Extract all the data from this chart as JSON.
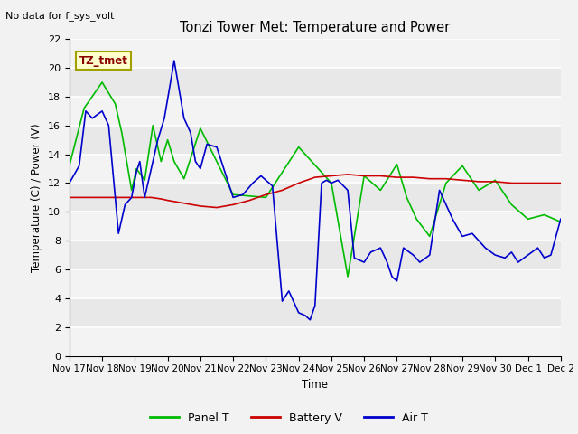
{
  "title": "Tonzi Tower Met: Temperature and Power",
  "no_data_text": "No data for f_sys_volt",
  "legend_box_text": "TZ_tmet",
  "ylabel": "Temperature (C) / Power (V)",
  "xlabel": "Time",
  "ylim": [
    0,
    22
  ],
  "yticks": [
    0,
    2,
    4,
    6,
    8,
    10,
    12,
    14,
    16,
    18,
    20,
    22
  ],
  "xtick_labels": [
    "Nov 17",
    "Nov 18",
    "Nov 19",
    "Nov 20",
    "Nov 21",
    "Nov 22",
    "Nov 23",
    "Nov 24",
    "Nov 25",
    "Nov 26",
    "Nov 27",
    "Nov 28",
    "Nov 29",
    "Nov 30",
    "Dec 1",
    "Dec 2"
  ],
  "bg_color": "#e8e8e8",
  "panel_t_color": "#00bb00",
  "battery_v_color": "#cc0000",
  "air_t_color": "#0000cc",
  "panel_t_x": [
    0.0,
    0.45,
    1.0,
    1.4,
    1.6,
    1.9,
    2.05,
    2.3,
    2.55,
    2.8,
    3.0,
    3.2,
    3.5,
    4.0,
    5.0,
    6.0,
    7.0,
    8.0,
    8.5,
    9.0,
    9.5,
    10.0,
    10.3,
    10.6,
    11.0,
    11.5,
    12.0,
    12.5,
    13.0,
    13.5,
    14.0,
    14.5,
    15.0
  ],
  "panel_t": [
    13.2,
    17.2,
    19.0,
    17.5,
    15.5,
    11.5,
    13.0,
    12.2,
    16.0,
    13.5,
    15.0,
    13.5,
    12.3,
    15.8,
    11.2,
    11.0,
    14.5,
    12.0,
    5.5,
    12.5,
    11.5,
    13.3,
    11.0,
    9.5,
    8.3,
    12.0,
    13.2,
    11.5,
    12.2,
    10.5,
    9.5,
    9.8,
    9.3
  ],
  "battery_v_x": [
    0.0,
    0.5,
    1.0,
    1.5,
    2.0,
    2.5,
    2.8,
    3.0,
    3.5,
    4.0,
    4.5,
    5.0,
    5.5,
    6.0,
    6.5,
    7.0,
    7.5,
    8.0,
    8.5,
    9.0,
    9.5,
    10.0,
    10.5,
    11.0,
    11.5,
    12.0,
    12.5,
    13.0,
    13.5,
    14.0,
    14.5,
    15.0
  ],
  "battery_v": [
    11.0,
    11.0,
    11.0,
    11.0,
    11.0,
    11.0,
    10.9,
    10.8,
    10.6,
    10.4,
    10.3,
    10.5,
    10.8,
    11.2,
    11.5,
    12.0,
    12.4,
    12.5,
    12.6,
    12.5,
    12.5,
    12.4,
    12.4,
    12.3,
    12.3,
    12.2,
    12.1,
    12.1,
    12.0,
    12.0,
    12.0,
    12.0
  ],
  "air_t_x": [
    0.0,
    0.3,
    0.5,
    0.7,
    1.0,
    1.2,
    1.5,
    1.7,
    1.9,
    2.05,
    2.15,
    2.3,
    2.5,
    2.7,
    2.9,
    3.05,
    3.2,
    3.35,
    3.5,
    3.7,
    3.85,
    4.0,
    4.2,
    4.5,
    5.0,
    5.3,
    5.6,
    5.85,
    6.0,
    6.2,
    6.5,
    6.7,
    7.0,
    7.2,
    7.35,
    7.5,
    7.7,
    7.85,
    8.0,
    8.2,
    8.5,
    8.7,
    9.0,
    9.2,
    9.5,
    9.7,
    9.85,
    10.0,
    10.2,
    10.5,
    10.7,
    11.0,
    11.3,
    11.5,
    11.7,
    12.0,
    12.3,
    12.5,
    12.7,
    13.0,
    13.3,
    13.5,
    13.7,
    14.0,
    14.3,
    14.5,
    14.7,
    15.0
  ],
  "air_t": [
    12.0,
    13.2,
    17.0,
    16.5,
    17.0,
    16.0,
    8.5,
    10.5,
    11.0,
    12.8,
    13.5,
    11.0,
    13.0,
    15.0,
    16.5,
    18.5,
    20.5,
    18.5,
    16.5,
    15.5,
    13.5,
    13.0,
    14.7,
    14.5,
    11.0,
    11.2,
    12.0,
    12.5,
    12.2,
    11.8,
    3.8,
    4.5,
    3.0,
    2.8,
    2.5,
    3.5,
    12.0,
    12.2,
    12.0,
    12.2,
    11.5,
    6.8,
    6.5,
    7.2,
    7.5,
    6.5,
    5.5,
    5.2,
    7.5,
    7.0,
    6.5,
    7.0,
    11.5,
    10.5,
    9.5,
    8.3,
    8.5,
    8.0,
    7.5,
    7.0,
    6.8,
    7.2,
    6.5,
    7.0,
    7.5,
    6.8,
    7.0,
    9.5
  ]
}
